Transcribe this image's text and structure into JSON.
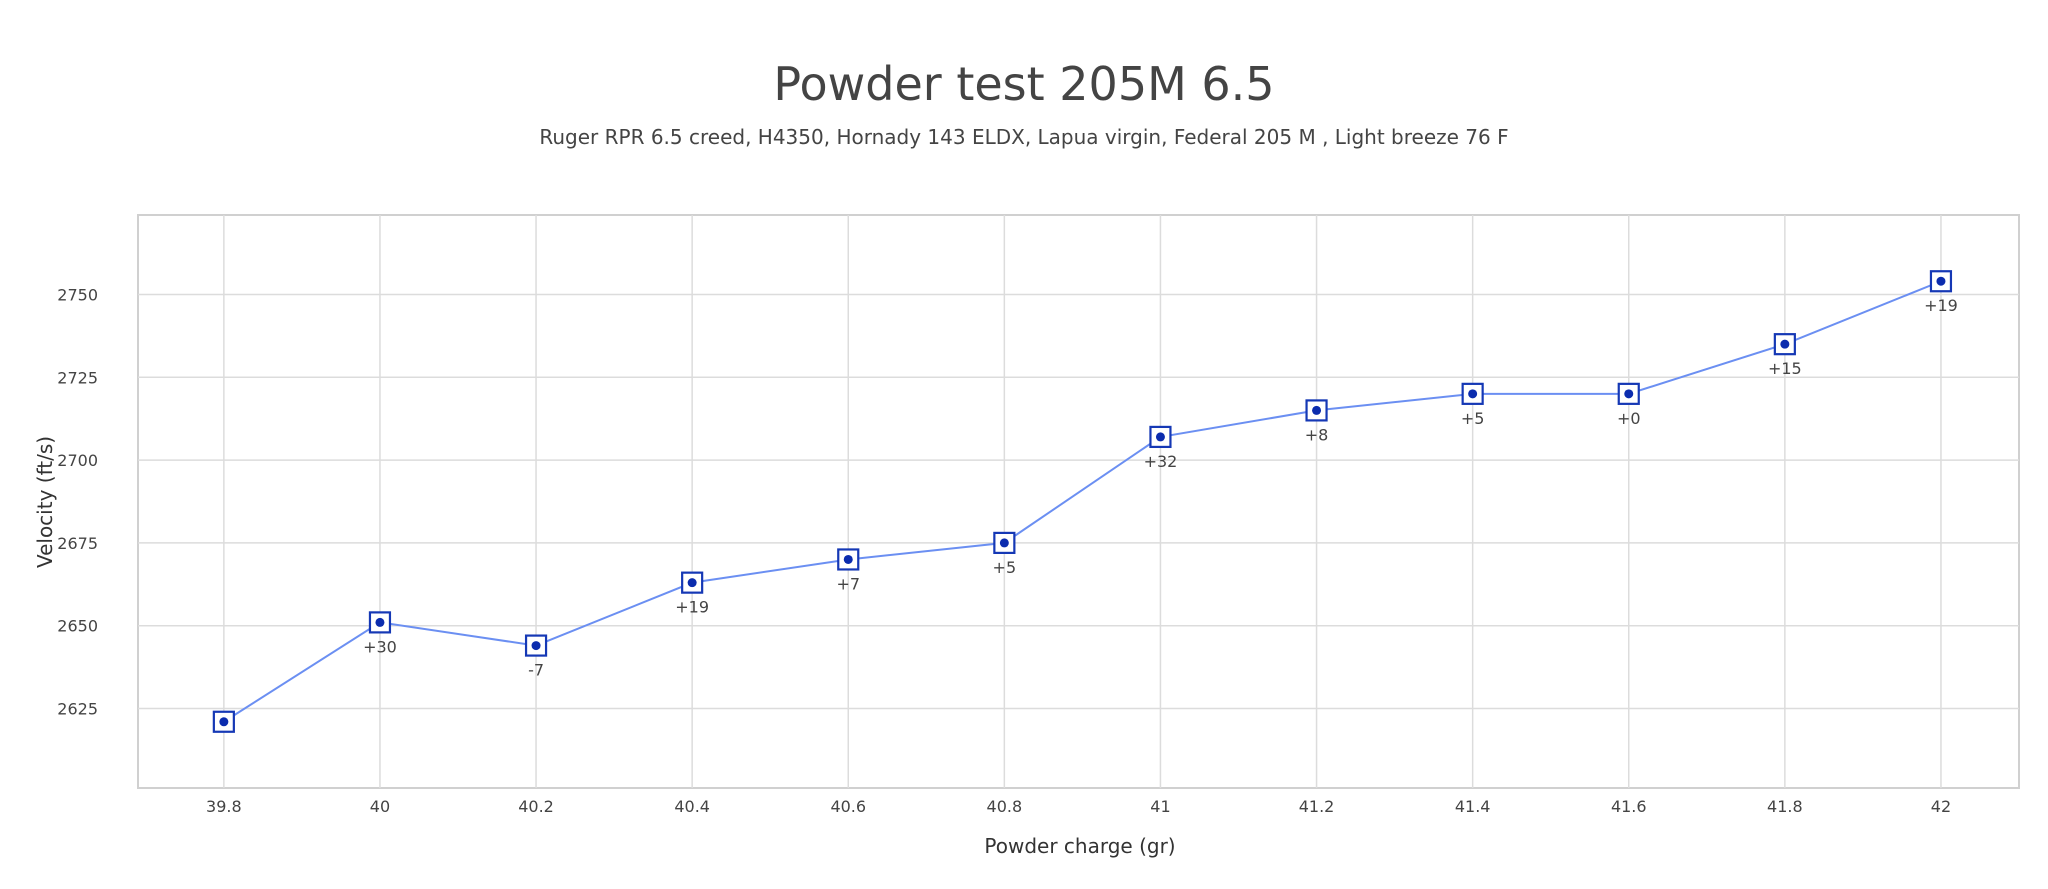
{
  "chart_data": {
    "type": "line",
    "title": "Powder test 205M 6.5",
    "subtitle": "Ruger RPR 6.5 creed, H4350, Hornady 143 ELDX, Lapua virgin, Federal 205 M , Light breeze 76 F",
    "xlabel": "Powder charge (gr)",
    "ylabel": "Velocity (ft/s)",
    "x": [
      39.8,
      40,
      40.2,
      40.4,
      40.6,
      40.8,
      41,
      41.2,
      41.4,
      41.6,
      41.8,
      42
    ],
    "x_tick_labels": [
      "39.8",
      "40",
      "40.2",
      "40.4",
      "40.6",
      "40.8",
      "41",
      "41.2",
      "41.4",
      "41.6",
      "41.8",
      "42"
    ],
    "series": [
      {
        "name": "Velocity",
        "values": [
          2621,
          2651,
          2644,
          2663,
          2670,
          2675,
          2707,
          2715,
          2720,
          2720,
          2735,
          2754
        ],
        "labels": [
          "",
          "+30",
          "-7",
          "+19",
          "+7",
          "+5",
          "+32",
          "+8",
          "+5",
          "+0",
          "+15",
          "+19"
        ]
      }
    ],
    "y_ticks": [
      2625,
      2650,
      2675,
      2700,
      2725,
      2750
    ],
    "xlim": [
      39.69,
      42.1
    ],
    "ylim": [
      2601,
      2774
    ],
    "grid": true,
    "colors": {
      "line": "#6b8ff2",
      "marker": "#1538b5",
      "dot": "#0b2cae"
    }
  }
}
